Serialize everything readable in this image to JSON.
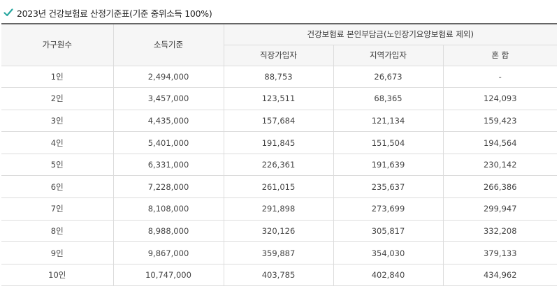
{
  "title": "2023년 건강보험료 산정기준표(기준 중위소득 100%)",
  "check_color": "#2aa7a0",
  "headers": {
    "household": "가구원수",
    "income": "소득기준",
    "premium_group": "건강보험료 본인부담금(노인장기요양보험료 제외)",
    "workplace": "직장가입자",
    "regional": "지역가입자",
    "mixed": "혼 합"
  },
  "rows": [
    {
      "household": "1인",
      "income": "2,494,000",
      "workplace": "88,753",
      "regional": "26,673",
      "mixed": "-"
    },
    {
      "household": "2인",
      "income": "3,457,000",
      "workplace": "123,511",
      "regional": "68,365",
      "mixed": "124,093"
    },
    {
      "household": "3인",
      "income": "4,435,000",
      "workplace": "157,684",
      "regional": "121,134",
      "mixed": "159,423"
    },
    {
      "household": "4인",
      "income": "5,401,000",
      "workplace": "191,845",
      "regional": "151,504",
      "mixed": "194,564"
    },
    {
      "household": "5인",
      "income": "6,331,000",
      "workplace": "226,361",
      "regional": "191,639",
      "mixed": "230,142"
    },
    {
      "household": "6인",
      "income": "7,228,000",
      "workplace": "261,015",
      "regional": "235,637",
      "mixed": "266,386"
    },
    {
      "household": "7인",
      "income": "8,108,000",
      "workplace": "291,898",
      "regional": "273,699",
      "mixed": "299,947"
    },
    {
      "household": "8인",
      "income": "8,988,000",
      "workplace": "320,126",
      "regional": "305,817",
      "mixed": "332,208"
    },
    {
      "household": "9인",
      "income": "9,867,000",
      "workplace": "359,887",
      "regional": "354,030",
      "mixed": "379,133"
    },
    {
      "household": "10인",
      "income": "10,747,000",
      "workplace": "403,785",
      "regional": "402,840",
      "mixed": "434,962"
    }
  ]
}
